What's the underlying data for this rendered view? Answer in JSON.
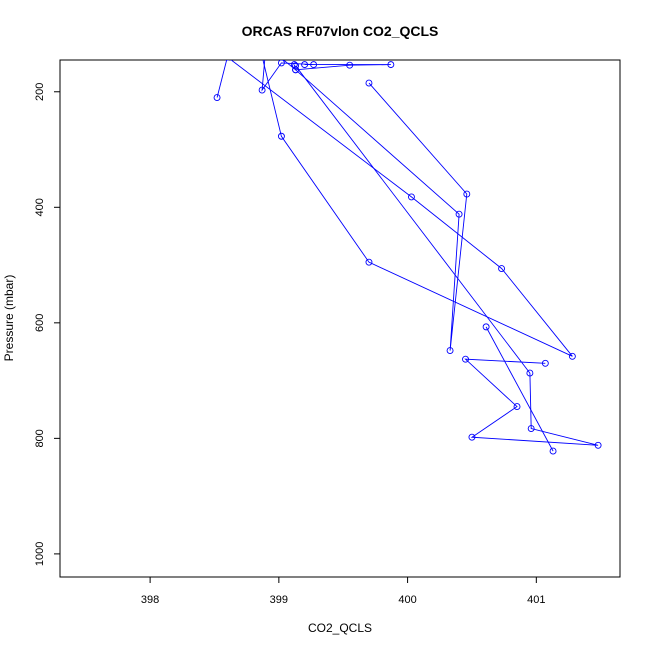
{
  "chart_data": {
    "type": "line",
    "title": "ORCAS RF07vlon CO2_QCLS",
    "xlabel": "CO2_QCLS",
    "ylabel": "Pressure (mbar)",
    "xlim": [
      397.3,
      401.65
    ],
    "ylim": [
      1040,
      145
    ],
    "y_axis_inverted": true,
    "x_ticks": [
      398,
      399,
      400,
      401
    ],
    "y_ticks": [
      200,
      400,
      600,
      800,
      1000
    ],
    "x_tick_labels": [
      "398",
      "399",
      "400",
      "401"
    ],
    "y_tick_labels": [
      "200",
      "400",
      "600",
      "800",
      "1000"
    ],
    "grid": false,
    "series_color": "#0000ff",
    "series": [
      {
        "markers": "open-circle",
        "x": [
          398.52,
          398.6,
          398.4
        ],
        "y": [
          210,
          140,
          100
        ]
      },
      {
        "markers": "open-circle",
        "x": [
          399.12,
          399.13,
          399.55,
          399.87,
          399.2,
          399.27,
          399.02,
          398.87,
          398.9
        ],
        "y": [
          153,
          162,
          154,
          153,
          153,
          153,
          150,
          197,
          120
        ]
      },
      {
        "markers": "open-circle",
        "x": [
          398.85,
          399.02,
          399.7,
          401.28,
          400.73,
          400.03,
          398.6
        ],
        "y": [
          120,
          277,
          495,
          658,
          506,
          382,
          140
        ]
      },
      {
        "markers": "open-circle",
        "x": [
          399.7,
          400.46,
          400.33,
          400.4,
          399.13,
          398.9
        ],
        "y": [
          185,
          377,
          648,
          412,
          162,
          120
        ]
      },
      {
        "markers": "open-circle",
        "x": [
          399.13,
          400.95,
          400.96,
          401.48,
          400.5,
          400.85,
          400.45,
          401.07
        ],
        "y": [
          155,
          687,
          783,
          812,
          798,
          745,
          663,
          670
        ]
      },
      {
        "markers": "open-circle",
        "x": [
          400.61,
          401.13
        ],
        "y": [
          607,
          822
        ]
      }
    ]
  }
}
